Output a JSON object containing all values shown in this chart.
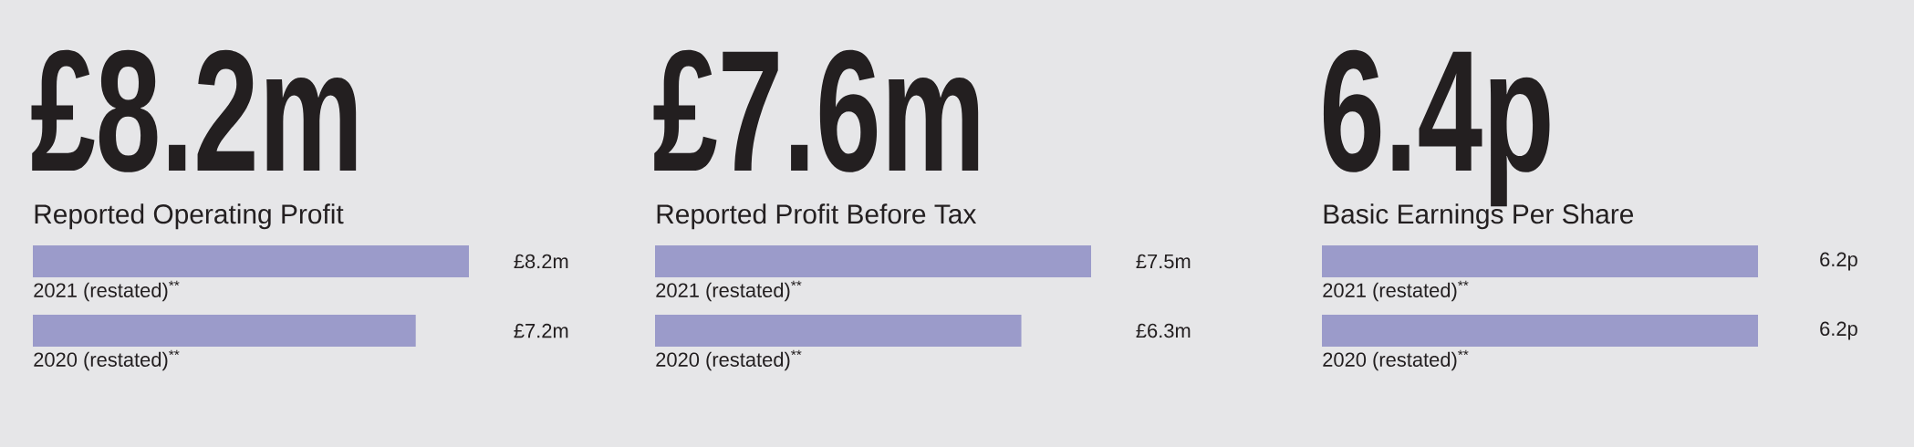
{
  "chart_data": [
    {
      "type": "bar",
      "orientation": "horizontal",
      "title": "£8.2m",
      "subtitle": "Reported Operating Profit",
      "categories": [
        "2021 (restated)$^{**}$",
        "2020 (restated)$^{**}$"
      ],
      "values": [
        8.2,
        7.2
      ],
      "value_labels": [
        "£8.2m",
        "£7.2m"
      ],
      "color": "#9b9bca"
    },
    {
      "type": "bar",
      "orientation": "horizontal",
      "title": "£7.6m",
      "subtitle": "Reported Profit Before Tax",
      "categories": [
        "2021 (restated)$^{**}$",
        "2020 (restated)$^{**}$"
      ],
      "values": [
        7.5,
        6.3
      ],
      "value_labels": [
        "£7.5m",
        "£6.3m"
      ],
      "color": "#9b9bca"
    },
    {
      "type": "bar",
      "orientation": "horizontal",
      "title": "6.4p",
      "subtitle": "Basic Earnings Per Share",
      "categories": [
        "2021 (restated)$^{**}$",
        "2020 (restated)$^{**}$"
      ],
      "values": [
        6.2,
        6.2
      ],
      "value_labels": [
        "6.2p",
        "6.2p"
      ],
      "color": "#9b9bca"
    }
  ]
}
